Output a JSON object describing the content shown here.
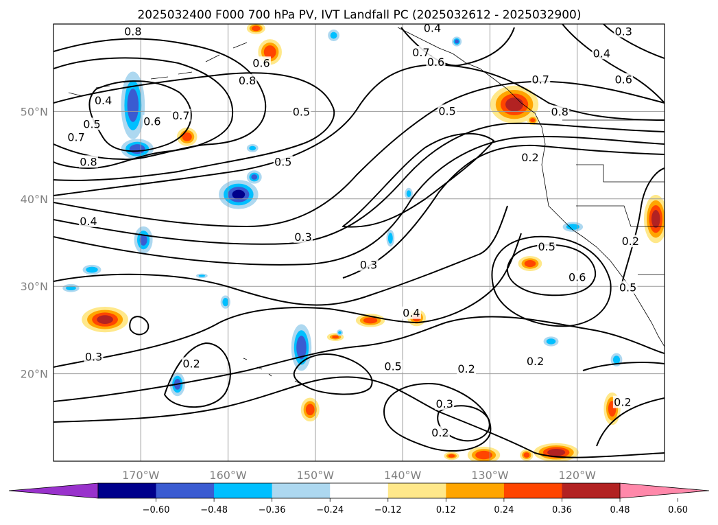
{
  "title": "2025032400 F000 700 hPa PV, IVT Landfall PC (2025032612 - 2025032900)",
  "map": {
    "lon_range": [
      -180,
      -110
    ],
    "lat_range": [
      10,
      60
    ],
    "lon_ticks": [
      {
        "lon": -170,
        "label": "170°W"
      },
      {
        "lon": -160,
        "label": "160°W"
      },
      {
        "lon": -150,
        "label": "150°W"
      },
      {
        "lon": -140,
        "label": "140°W"
      },
      {
        "lon": -130,
        "label": "130°W"
      },
      {
        "lon": -120,
        "label": "120°W"
      }
    ],
    "lat_ticks": [
      {
        "lat": 20,
        "label": "20°N"
      },
      {
        "lat": 30,
        "label": "30°N"
      },
      {
        "lat": 40,
        "label": "40°N"
      },
      {
        "lat": 50,
        "label": "50°N"
      }
    ],
    "grid": true,
    "contour_labels": [
      {
        "text": "0.8",
        "lon": -170.9,
        "lat": 59.1
      },
      {
        "text": "0.6",
        "lon": -156.2,
        "lat": 55.5
      },
      {
        "text": "0.4",
        "lon": -136.6,
        "lat": 59.5
      },
      {
        "text": "0.3",
        "lon": -114.7,
        "lat": 59.1
      },
      {
        "text": "0.7",
        "lon": -137.9,
        "lat": 56.7
      },
      {
        "text": "0.6",
        "lon": -136.2,
        "lat": 55.6
      },
      {
        "text": "0.4",
        "lon": -117.2,
        "lat": 56.6
      },
      {
        "text": "0.6",
        "lon": -114.7,
        "lat": 53.6
      },
      {
        "text": "0.8",
        "lon": -157.8,
        "lat": 53.5
      },
      {
        "text": "0.4",
        "lon": -174.3,
        "lat": 51.2
      },
      {
        "text": "0.7",
        "lon": -124.2,
        "lat": 53.6
      },
      {
        "text": "0.6",
        "lon": -168.7,
        "lat": 48.8
      },
      {
        "text": "0.7",
        "lon": -165.4,
        "lat": 49.5
      },
      {
        "text": "0.5",
        "lon": -175.6,
        "lat": 48.5
      },
      {
        "text": "0.5",
        "lon": -151.6,
        "lat": 49.9
      },
      {
        "text": "0.5",
        "lon": -134.9,
        "lat": 50.0
      },
      {
        "text": "0.8",
        "lon": -122.0,
        "lat": 49.9
      },
      {
        "text": "0.7",
        "lon": -177.4,
        "lat": 47.0
      },
      {
        "text": "0.8",
        "lon": -176.0,
        "lat": 44.2
      },
      {
        "text": "0.2",
        "lon": -125.4,
        "lat": 44.7
      },
      {
        "text": "0.5",
        "lon": -153.7,
        "lat": 44.2
      },
      {
        "text": "0.4",
        "lon": -176.0,
        "lat": 37.4
      },
      {
        "text": "0.3",
        "lon": -151.4,
        "lat": 35.6
      },
      {
        "text": "0.2",
        "lon": -113.9,
        "lat": 35.1
      },
      {
        "text": "0.3",
        "lon": -143.9,
        "lat": 32.4
      },
      {
        "text": "0.5",
        "lon": -123.5,
        "lat": 34.5
      },
      {
        "text": "0.6",
        "lon": -120.0,
        "lat": 31.0
      },
      {
        "text": "0.5",
        "lon": -114.2,
        "lat": 29.8
      },
      {
        "text": "0.4",
        "lon": -139.0,
        "lat": 26.9
      },
      {
        "text": "0.3",
        "lon": -175.4,
        "lat": 21.9
      },
      {
        "text": "0.2",
        "lon": -164.2,
        "lat": 21.1
      },
      {
        "text": "0.5",
        "lon": -141.1,
        "lat": 20.8
      },
      {
        "text": "0.2",
        "lon": -132.7,
        "lat": 20.5
      },
      {
        "text": "0.2",
        "lon": -124.8,
        "lat": 21.4
      },
      {
        "text": "0.3",
        "lon": -135.2,
        "lat": 16.5
      },
      {
        "text": "0.2",
        "lon": -114.8,
        "lat": 16.7
      },
      {
        "text": "0.2",
        "lon": -135.7,
        "lat": 13.2
      }
    ],
    "positive_pv_blobs": [
      {
        "lon": -156.8,
        "lat": 59.5,
        "rlon": 1.0,
        "rlat": 0.6,
        "intensity": 0.42
      },
      {
        "lon": -155.2,
        "lat": 56.8,
        "rlon": 1.3,
        "rlat": 1.4,
        "intensity": 0.46
      },
      {
        "lon": -127.2,
        "lat": 50.8,
        "rlon": 2.7,
        "rlat": 2.1,
        "intensity": 0.52
      },
      {
        "lon": -125.1,
        "lat": 49.0,
        "rlon": 0.6,
        "rlat": 0.5,
        "intensity": 0.4
      },
      {
        "lon": -164.7,
        "lat": 47.1,
        "rlon": 1.1,
        "rlat": 1.0,
        "intensity": 0.42
      },
      {
        "lon": -111.0,
        "lat": 37.7,
        "rlon": 1.3,
        "rlat": 2.7,
        "intensity": 0.52
      },
      {
        "lon": -125.4,
        "lat": 32.6,
        "rlon": 1.3,
        "rlat": 0.8,
        "intensity": 0.42
      },
      {
        "lon": -138.4,
        "lat": 26.4,
        "rlon": 1.0,
        "rlat": 0.9,
        "intensity": 0.4
      },
      {
        "lon": -143.7,
        "lat": 26.1,
        "rlon": 1.6,
        "rlat": 0.7,
        "intensity": 0.42
      },
      {
        "lon": -174.1,
        "lat": 26.2,
        "rlon": 2.6,
        "rlat": 1.4,
        "intensity": 0.5
      },
      {
        "lon": -147.7,
        "lat": 24.2,
        "rlon": 0.9,
        "rlat": 0.4,
        "intensity": 0.36
      },
      {
        "lon": -150.6,
        "lat": 15.9,
        "rlon": 1.0,
        "rlat": 1.3,
        "intensity": 0.42
      },
      {
        "lon": -116.0,
        "lat": 16.0,
        "rlon": 0.9,
        "rlat": 1.8,
        "intensity": 0.42
      },
      {
        "lon": -122.4,
        "lat": 11.0,
        "rlon": 2.5,
        "rlat": 1.0,
        "intensity": 0.55
      },
      {
        "lon": -130.7,
        "lat": 10.7,
        "rlon": 1.8,
        "rlat": 0.9,
        "intensity": 0.46
      },
      {
        "lon": -125.8,
        "lat": 10.7,
        "rlon": 0.7,
        "rlat": 0.6,
        "intensity": 0.42
      },
      {
        "lon": -134.4,
        "lat": 10.6,
        "rlon": 0.8,
        "rlat": 0.4,
        "intensity": 0.4
      }
    ],
    "negative_pv_blobs": [
      {
        "lon": -170.9,
        "lat": 50.7,
        "rlon": 1.3,
        "rlat": 3.8,
        "intensity": -0.42
      },
      {
        "lon": -170.4,
        "lat": 45.7,
        "rlon": 1.8,
        "rlat": 1.1,
        "intensity": -0.42
      },
      {
        "lon": -158.8,
        "lat": 40.5,
        "rlon": 2.2,
        "rlat": 1.6,
        "intensity": -0.48
      },
      {
        "lon": -157.0,
        "lat": 42.5,
        "rlon": 0.8,
        "rlat": 0.7,
        "intensity": -0.36
      },
      {
        "lon": -169.7,
        "lat": 35.3,
        "rlon": 1.0,
        "rlat": 1.5,
        "intensity": -0.36
      },
      {
        "lon": -175.6,
        "lat": 31.9,
        "rlon": 1.0,
        "rlat": 0.5,
        "intensity": -0.32
      },
      {
        "lon": -178.0,
        "lat": 29.8,
        "rlon": 0.9,
        "rlat": 0.4,
        "intensity": -0.28
      },
      {
        "lon": -151.6,
        "lat": 23.0,
        "rlon": 1.1,
        "rlat": 2.6,
        "intensity": -0.44
      },
      {
        "lon": -165.8,
        "lat": 18.8,
        "rlon": 0.8,
        "rlat": 1.3,
        "intensity": -0.4
      },
      {
        "lon": -160.3,
        "lat": 28.2,
        "rlon": 0.5,
        "rlat": 0.7,
        "intensity": -0.32
      },
      {
        "lon": -141.4,
        "lat": 35.5,
        "rlon": 0.4,
        "rlat": 0.9,
        "intensity": -0.32
      },
      {
        "lon": -120.5,
        "lat": 36.8,
        "rlon": 1.1,
        "rlat": 0.5,
        "intensity": -0.32
      },
      {
        "lon": -123.0,
        "lat": 23.7,
        "rlon": 0.8,
        "rlat": 0.5,
        "intensity": -0.3
      },
      {
        "lon": -115.5,
        "lat": 21.6,
        "rlon": 0.6,
        "rlat": 0.7,
        "intensity": -0.3
      },
      {
        "lon": -147.9,
        "lat": 58.7,
        "rlon": 0.6,
        "rlat": 0.6,
        "intensity": -0.28
      },
      {
        "lon": -157.2,
        "lat": 45.8,
        "rlon": 0.6,
        "rlat": 0.4,
        "intensity": -0.28
      },
      {
        "lon": -139.3,
        "lat": 40.6,
        "rlon": 0.4,
        "rlat": 0.6,
        "intensity": -0.28
      },
      {
        "lon": -163.0,
        "lat": 31.2,
        "rlon": 0.6,
        "rlat": 0.2,
        "intensity": -0.26
      },
      {
        "lon": -147.2,
        "lat": 24.7,
        "rlon": 0.3,
        "rlat": 0.3,
        "intensity": -0.26
      },
      {
        "lon": -133.8,
        "lat": 58.0,
        "rlon": 0.5,
        "rlat": 0.5,
        "intensity": -0.4
      }
    ]
  },
  "colorbar": {
    "ticks": [
      "−0.60",
      "−0.48",
      "−0.36",
      "−0.24",
      "−0.12",
      "0.12",
      "0.24",
      "0.36",
      "0.48",
      "0.60"
    ],
    "bins": [
      {
        "from": null,
        "to": -0.6,
        "color": "#9932CC"
      },
      {
        "from": -0.6,
        "to": -0.48,
        "color": "#00008B"
      },
      {
        "from": -0.48,
        "to": -0.36,
        "color": "#3A5BD1"
      },
      {
        "from": -0.36,
        "to": -0.24,
        "color": "#00BFFF"
      },
      {
        "from": -0.24,
        "to": -0.12,
        "color": "#ADD8F0"
      },
      {
        "from": -0.12,
        "to": 0.12,
        "color": "#FFFFFF"
      },
      {
        "from": 0.12,
        "to": 0.24,
        "color": "#FFE88A"
      },
      {
        "from": 0.24,
        "to": 0.36,
        "color": "#FFA500"
      },
      {
        "from": 0.36,
        "to": 0.48,
        "color": "#FF4500"
      },
      {
        "from": 0.48,
        "to": 0.6,
        "color": "#B22222"
      },
      {
        "from": 0.6,
        "to": null,
        "color": "#FF88AA"
      }
    ]
  }
}
